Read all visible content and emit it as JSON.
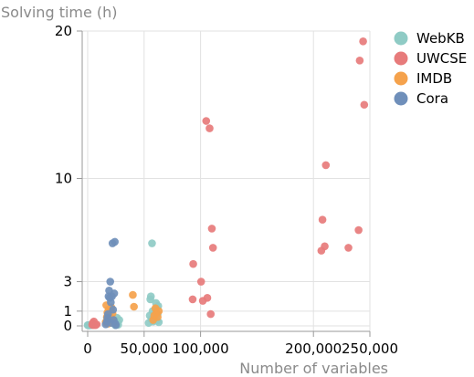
{
  "chart_data": {
    "type": "scatter",
    "xlabel": "Number of variables",
    "ylabel": "Solving time (h)",
    "xlim": [
      0,
      250000
    ],
    "ylim": [
      0,
      20
    ],
    "x_ticks": [
      {
        "value": 0,
        "label": "0"
      },
      {
        "value": 50000,
        "label": "50,000"
      },
      {
        "value": 100000,
        "label": "100,000"
      },
      {
        "value": 200000,
        "label": "200,000"
      },
      {
        "value": 250000,
        "label": "250,000"
      }
    ],
    "y_ticks": [
      {
        "value": 0,
        "label": "0"
      },
      {
        "value": 1,
        "label": "1"
      },
      {
        "value": 3,
        "label": "3"
      },
      {
        "value": 10,
        "label": "10"
      },
      {
        "value": 20,
        "label": "20"
      }
    ],
    "grid": true,
    "legend_position": "top-right",
    "series": [
      {
        "name": "WebKB",
        "color": "#8fcbc5",
        "points": [
          [
            0,
            0.05
          ],
          [
            500,
            0.04
          ],
          [
            1000,
            0.06
          ],
          [
            1500,
            0.03
          ],
          [
            2000,
            0.05
          ],
          [
            2500,
            0.04
          ],
          [
            3000,
            0.05
          ],
          [
            4000,
            0.06
          ],
          [
            24000,
            0.2
          ],
          [
            24500,
            0.05
          ],
          [
            25000,
            0.35
          ],
          [
            25500,
            0.12
          ],
          [
            26000,
            0.55
          ],
          [
            26500,
            0.25
          ],
          [
            27000,
            0.08
          ],
          [
            28000,
            0.4
          ],
          [
            54000,
            0.2
          ],
          [
            55000,
            0.7
          ],
          [
            55500,
            1.8
          ],
          [
            56000,
            2.0
          ],
          [
            56500,
            0.45
          ],
          [
            57000,
            5.6
          ],
          [
            57500,
            1.0
          ],
          [
            58000,
            0.3
          ],
          [
            59000,
            0.55
          ],
          [
            60000,
            0.95
          ],
          [
            60500,
            1.55
          ],
          [
            61000,
            1.25
          ],
          [
            61500,
            0.35
          ],
          [
            62000,
            0.8
          ],
          [
            62500,
            1.35
          ],
          [
            63000,
            0.25
          ]
        ]
      },
      {
        "name": "UWCSE",
        "color": "#e77b7b",
        "points": [
          [
            4000,
            0.08
          ],
          [
            4500,
            0.2
          ],
          [
            5000,
            0.05
          ],
          [
            5500,
            0.3
          ],
          [
            6000,
            0.12
          ],
          [
            7000,
            0.05
          ],
          [
            8000,
            0.1
          ],
          [
            20000,
            0.3
          ],
          [
            93000,
            1.8
          ],
          [
            93500,
            4.2
          ],
          [
            100500,
            3.0
          ],
          [
            102000,
            1.7
          ],
          [
            105000,
            13.9
          ],
          [
            106000,
            1.9
          ],
          [
            108000,
            13.4
          ],
          [
            109000,
            0.8
          ],
          [
            110000,
            6.6
          ],
          [
            111000,
            5.3
          ],
          [
            207000,
            5.1
          ],
          [
            208000,
            7.2
          ],
          [
            210000,
            5.4
          ],
          [
            211000,
            10.9
          ],
          [
            231000,
            5.3
          ],
          [
            240000,
            6.5
          ],
          [
            241000,
            18.0
          ],
          [
            244000,
            19.3
          ],
          [
            245000,
            15.0
          ]
        ]
      },
      {
        "name": "IMDB",
        "color": "#f5a24c",
        "points": [
          [
            16000,
            0.25
          ],
          [
            16500,
            1.4
          ],
          [
            17000,
            0.6
          ],
          [
            17500,
            0.9
          ],
          [
            18000,
            0.15
          ],
          [
            18500,
            1.1
          ],
          [
            19000,
            0.45
          ],
          [
            19500,
            0.7
          ],
          [
            20000,
            1.0
          ],
          [
            20500,
            0.3
          ],
          [
            21000,
            1.25
          ],
          [
            21500,
            0.5
          ],
          [
            22000,
            0.85
          ],
          [
            22500,
            0.2
          ],
          [
            40000,
            2.1
          ],
          [
            41000,
            1.3
          ],
          [
            58000,
            0.4
          ],
          [
            59000,
            0.7
          ],
          [
            60000,
            1.2
          ],
          [
            61000,
            0.9
          ],
          [
            62000,
            0.6
          ],
          [
            63000,
            1.0
          ]
        ]
      },
      {
        "name": "Cora",
        "color": "#6f8fba",
        "points": [
          [
            16000,
            0.1
          ],
          [
            17000,
            0.3
          ],
          [
            17500,
            0.55
          ],
          [
            18000,
            0.8
          ],
          [
            18500,
            2.0
          ],
          [
            19000,
            2.4
          ],
          [
            19500,
            1.9
          ],
          [
            20000,
            3.0
          ],
          [
            20500,
            1.6
          ],
          [
            21000,
            0.2
          ],
          [
            21500,
            2.0
          ],
          [
            22000,
            5.6
          ],
          [
            22500,
            1.1
          ],
          [
            23000,
            0.4
          ],
          [
            23500,
            2.2
          ],
          [
            24000,
            5.7
          ],
          [
            24500,
            0.15
          ],
          [
            25000,
            0.05
          ]
        ]
      }
    ]
  }
}
